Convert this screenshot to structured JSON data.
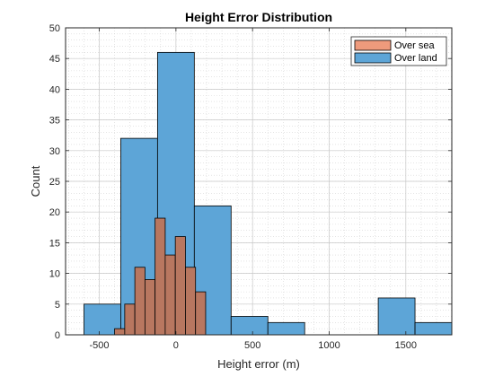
{
  "chart_data": {
    "type": "bar",
    "title": "Height Error Distribution",
    "xlabel": "Height error (m)",
    "ylabel": "Count",
    "xlim": [
      -720,
      1800
    ],
    "ylim": [
      0,
      50
    ],
    "xticks": [
      -500,
      0,
      500,
      1000,
      1500
    ],
    "xtick_labels": [
      "-500",
      "0",
      "500",
      "1000",
      "1500"
    ],
    "yticks": [
      0,
      5,
      10,
      15,
      20,
      25,
      30,
      35,
      40,
      45,
      50
    ],
    "ytick_labels": [
      "0",
      "5",
      "10",
      "15",
      "20",
      "25",
      "30",
      "35",
      "40",
      "45",
      "50"
    ],
    "grid": true,
    "minor_grid": true,
    "legend": "top-right",
    "series": [
      {
        "name": "Over land",
        "color": "#5DA5D7",
        "bin_edges": [
          -600,
          -360,
          -120,
          120,
          360,
          600,
          840,
          1080,
          1320,
          1560,
          1800
        ],
        "counts": [
          5,
          32,
          46,
          21,
          3,
          2,
          0,
          0,
          6,
          2
        ]
      },
      {
        "name": "Over sea",
        "color": "#B87760",
        "bin_edges": [
          -400,
          -334,
          -268,
          -202,
          -136,
          -70,
          -4,
          62,
          128,
          194
        ],
        "counts": [
          1,
          5,
          11,
          9,
          19,
          13,
          16,
          11,
          7
        ]
      }
    ],
    "legend_entries": [
      {
        "name": "Over sea",
        "color": "#EE9A7C"
      },
      {
        "name": "Over land",
        "color": "#5DA5D7"
      }
    ]
  }
}
